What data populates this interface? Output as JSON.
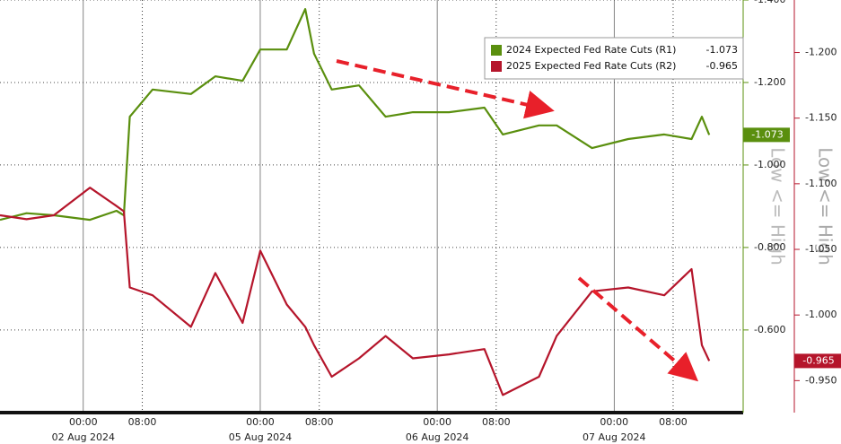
{
  "chart_data": {
    "type": "line",
    "y_label": "Low <= High",
    "y2_label": "Low <= High",
    "x": [
      -11.3,
      -7.7,
      -4.0,
      0.9,
      4.5,
      5.5,
      6.3,
      9.4,
      14.6,
      17.9,
      21.6,
      24.0,
      27.6,
      30.1,
      31.3,
      33.7,
      37.4,
      41.0,
      44.7,
      49.6,
      54.4,
      56.9,
      61.8,
      64.2,
      69.0,
      73.9,
      78.8,
      82.5,
      83.9,
      84.9
    ],
    "series": [
      {
        "name": "2024 Expected Fed Rate Cuts (R1)",
        "color": "#5a8f0e",
        "axis": "y",
        "last_label": "-1.073",
        "values": [
          -0.867,
          -0.883,
          -0.878,
          -0.867,
          -0.889,
          -0.878,
          -1.117,
          -1.183,
          -1.172,
          -1.215,
          -1.204,
          -1.28,
          -1.28,
          -1.378,
          -1.27,
          -1.183,
          -1.193,
          -1.117,
          -1.128,
          -1.128,
          -1.139,
          -1.074,
          -1.096,
          -1.096,
          -1.041,
          -1.063,
          -1.074,
          -1.063,
          -1.117,
          -1.073
        ]
      },
      {
        "name": "2025 Expected Fed Rate Cuts (R2)",
        "color": "#b5152b",
        "axis": "y2",
        "last_label": "-0.965",
        "values": [
          -1.076,
          -1.073,
          -1.076,
          -1.097,
          -1.083,
          -1.079,
          -1.021,
          -1.015,
          -0.991,
          -1.032,
          -0.994,
          -1.049,
          -1.008,
          -0.991,
          -0.977,
          -0.953,
          -0.967,
          -0.984,
          -0.967,
          -0.97,
          -0.974,
          -0.939,
          -0.953,
          -0.984,
          -1.018,
          -1.021,
          -1.015,
          -1.035,
          -0.977,
          -0.965
        ]
      }
    ],
    "xlim": [
      -11.3,
      89.5
    ],
    "xticks": [
      {
        "value": 0,
        "label": "00:00"
      },
      {
        "value": 8,
        "label": "08:00"
      },
      {
        "value": 24,
        "label": "00:00"
      },
      {
        "value": 32,
        "label": "08:00"
      },
      {
        "value": 48,
        "label": "00:00"
      },
      {
        "value": 56,
        "label": "08:00"
      },
      {
        "value": 72,
        "label": "00:00"
      },
      {
        "value": 80,
        "label": "08:00"
      }
    ],
    "date_labels": [
      {
        "value": 0,
        "label": "02 Aug 2024"
      },
      {
        "value": 24,
        "label": "05 Aug 2024"
      },
      {
        "value": 48,
        "label": "06 Aug 2024"
      },
      {
        "value": 72,
        "label": "07 Aug 2024"
      }
    ],
    "ylim": [
      -0.404,
      -1.4
    ],
    "yticks": [
      {
        "value": -1.4,
        "label": "-1.400"
      },
      {
        "value": -1.2,
        "label": "-1.200"
      },
      {
        "value": -1.0,
        "label": "-1.000"
      },
      {
        "value": -0.8,
        "label": "-0.800"
      },
      {
        "value": -0.6,
        "label": "-0.600"
      }
    ],
    "y2lim": [
      -0.927,
      -1.24
    ],
    "y2ticks": [
      {
        "value": -1.2,
        "label": "-1.200"
      },
      {
        "value": -1.15,
        "label": "-1.150"
      },
      {
        "value": -1.1,
        "label": "-1.100"
      },
      {
        "value": -1.05,
        "label": "-1.050"
      },
      {
        "value": -1.0,
        "label": "-1.000"
      },
      {
        "value": -0.95,
        "label": "-0.950"
      }
    ],
    "grid": true
  }
}
